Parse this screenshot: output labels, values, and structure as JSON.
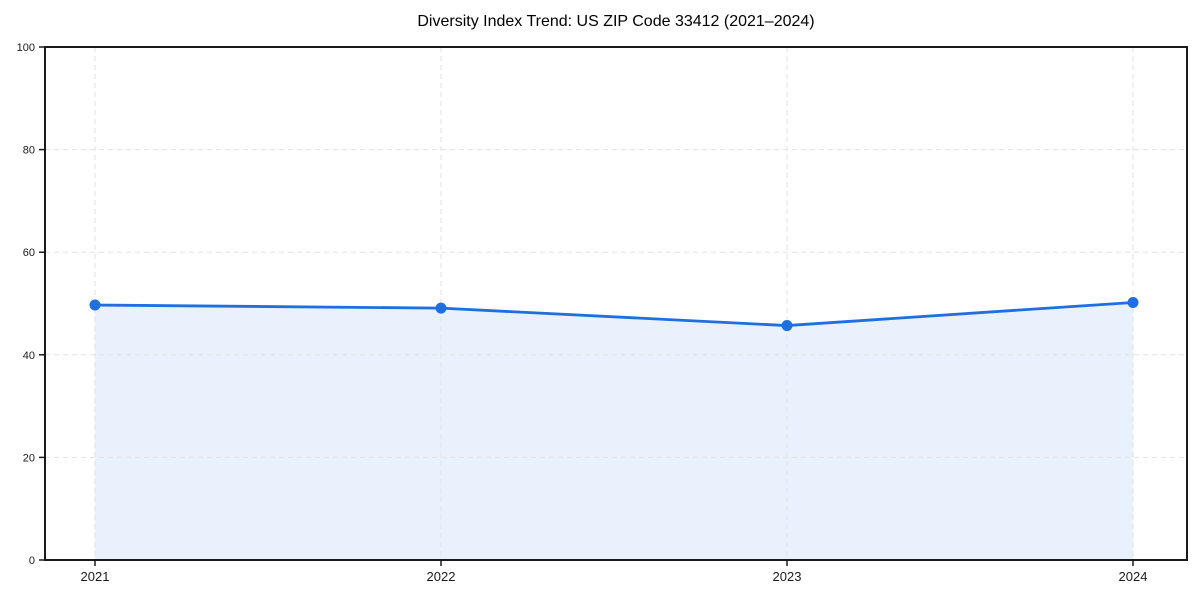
{
  "chart_data": {
    "type": "area",
    "title": "Diversity Index Trend: US ZIP Code 33412 (2021–2024)",
    "categories": [
      "2021",
      "2022",
      "2023",
      "2024"
    ],
    "values": [
      49.7,
      49.1,
      45.7,
      50.2
    ],
    "series": [
      {
        "name": "Diversity Index",
        "values": [
          49.7,
          49.1,
          45.7,
          50.2
        ]
      }
    ],
    "xlabel": "",
    "ylabel": "",
    "ylim": [
      0,
      100
    ],
    "yticks": [
      0,
      20,
      40,
      60,
      80,
      100
    ],
    "grid": true,
    "grid_style": "dashed",
    "legend_position": "none",
    "marker": "circle",
    "colors": {
      "line": "#1f6fe0",
      "marker": "#1f6fe0",
      "area_fill": "#e9f1fc",
      "gridline": "#e2e2e2",
      "axis": "#1a1a1a",
      "tick_label": "#1a1a1a",
      "title_color": "#000000",
      "background": "#ffffff"
    }
  }
}
